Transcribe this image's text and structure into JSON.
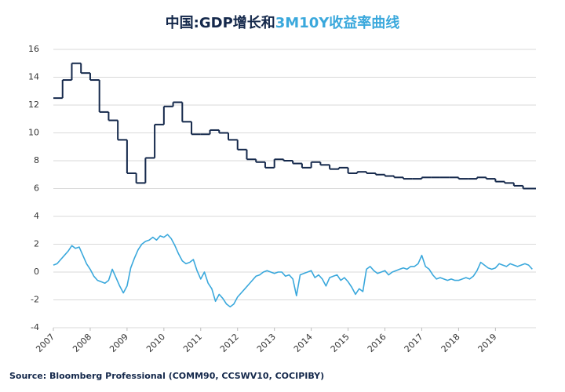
{
  "chart_data": {
    "type": "line",
    "title": [
      "中国:GDP增长和",
      "3M10Y收益率曲线"
    ],
    "title_colors": [
      "#14284b",
      "#3aa8dc"
    ],
    "source": "Source: Bloomberg Professional  (COMM90, CCSWV10, COCIPIBY)",
    "xlim": [
      2007,
      2020.1
    ],
    "xticks": [
      2007,
      2008,
      2009,
      2010,
      2011,
      2012,
      2013,
      2014,
      2015,
      2016,
      2017,
      2018,
      2019
    ],
    "ylim": [
      -4,
      16
    ],
    "yticks": [
      -4,
      -2,
      0,
      2,
      4,
      6,
      8,
      10,
      12,
      14,
      16
    ],
    "grid": true,
    "series": [
      {
        "color": "#14284b",
        "step": true,
        "x": [
          2007,
          2007.25,
          2007.5,
          2007.75,
          2008,
          2008.25,
          2008.5,
          2008.75,
          2009,
          2009.25,
          2009.5,
          2009.75,
          2010,
          2010.25,
          2010.5,
          2010.75,
          2011,
          2011.25,
          2011.5,
          2011.75,
          2012,
          2012.25,
          2012.5,
          2012.75,
          2013,
          2013.25,
          2013.5,
          2013.75,
          2014,
          2014.25,
          2014.5,
          2014.75,
          2015,
          2015.25,
          2015.5,
          2015.75,
          2016,
          2016.25,
          2016.5,
          2016.75,
          2017,
          2017.25,
          2017.5,
          2017.75,
          2018,
          2018.25,
          2018.5,
          2018.75,
          2019,
          2019.25,
          2019.5,
          2019.75
        ],
        "values": [
          12.5,
          13.8,
          15.0,
          14.3,
          13.8,
          11.5,
          10.9,
          9.5,
          7.1,
          6.4,
          8.2,
          10.6,
          11.9,
          12.2,
          10.8,
          9.9,
          9.9,
          10.2,
          10.0,
          9.5,
          8.8,
          8.1,
          7.9,
          7.5,
          8.1,
          8.0,
          7.8,
          7.5,
          7.9,
          7.7,
          7.4,
          7.5,
          7.1,
          7.2,
          7.1,
          7.0,
          6.9,
          6.8,
          6.7,
          6.7,
          6.8,
          6.8,
          6.8,
          6.8,
          6.7,
          6.7,
          6.8,
          6.7,
          6.5,
          6.4,
          6.2,
          6.0
        ]
      },
      {
        "color": "#3aa8dc",
        "step": false,
        "x": [
          2007,
          2007.1,
          2007.2,
          2007.3,
          2007.4,
          2007.5,
          2007.6,
          2007.7,
          2007.8,
          2007.9,
          2008,
          2008.1,
          2008.2,
          2008.3,
          2008.4,
          2008.5,
          2008.6,
          2008.7,
          2008.8,
          2008.9,
          2009,
          2009.1,
          2009.2,
          2009.3,
          2009.4,
          2009.5,
          2009.6,
          2009.7,
          2009.8,
          2009.9,
          2010,
          2010.1,
          2010.2,
          2010.3,
          2010.4,
          2010.5,
          2010.6,
          2010.7,
          2010.8,
          2010.9,
          2011,
          2011.1,
          2011.2,
          2011.3,
          2011.4,
          2011.5,
          2011.6,
          2011.7,
          2011.8,
          2011.9,
          2012,
          2012.1,
          2012.2,
          2012.3,
          2012.4,
          2012.5,
          2012.6,
          2012.7,
          2012.8,
          2012.9,
          2013,
          2013.1,
          2013.2,
          2013.3,
          2013.4,
          2013.5,
          2013.6,
          2013.7,
          2013.8,
          2013.9,
          2014,
          2014.1,
          2014.2,
          2014.3,
          2014.4,
          2014.5,
          2014.6,
          2014.7,
          2014.8,
          2014.9,
          2015,
          2015.1,
          2015.2,
          2015.3,
          2015.4,
          2015.5,
          2015.6,
          2015.7,
          2015.8,
          2015.9,
          2016,
          2016.1,
          2016.2,
          2016.3,
          2016.4,
          2016.5,
          2016.6,
          2016.7,
          2016.8,
          2016.9,
          2017,
          2017.1,
          2017.2,
          2017.3,
          2017.4,
          2017.5,
          2017.6,
          2017.7,
          2017.8,
          2017.9,
          2018,
          2018.1,
          2018.2,
          2018.3,
          2018.4,
          2018.5,
          2018.6,
          2018.7,
          2018.8,
          2018.9,
          2019,
          2019.1,
          2019.2,
          2019.3,
          2019.4,
          2019.5,
          2019.6,
          2019.7,
          2019.8,
          2019.9,
          2020
        ],
        "values": [
          0.5,
          0.6,
          0.9,
          1.2,
          1.5,
          1.9,
          1.7,
          1.8,
          1.2,
          0.6,
          0.2,
          -0.3,
          -0.6,
          -0.7,
          -0.8,
          -0.6,
          0.2,
          -0.4,
          -1.0,
          -1.5,
          -1.0,
          0.3,
          1.0,
          1.6,
          2.0,
          2.2,
          2.3,
          2.5,
          2.3,
          2.6,
          2.5,
          2.7,
          2.4,
          1.9,
          1.3,
          0.8,
          0.6,
          0.7,
          0.9,
          0.1,
          -0.5,
          0.0,
          -0.8,
          -1.2,
          -2.1,
          -1.6,
          -1.9,
          -2.3,
          -2.5,
          -2.3,
          -1.8,
          -1.5,
          -1.2,
          -0.9,
          -0.6,
          -0.3,
          -0.2,
          0.0,
          0.1,
          0.0,
          -0.1,
          0.0,
          0.0,
          -0.3,
          -0.2,
          -0.5,
          -1.7,
          -0.2,
          -0.1,
          0.0,
          0.1,
          -0.4,
          -0.2,
          -0.5,
          -1.0,
          -0.4,
          -0.3,
          -0.2,
          -0.6,
          -0.4,
          -0.7,
          -1.1,
          -1.6,
          -1.2,
          -1.4,
          0.2,
          0.4,
          0.1,
          -0.1,
          0.0,
          0.1,
          -0.2,
          0.0,
          0.1,
          0.2,
          0.3,
          0.2,
          0.4,
          0.4,
          0.6,
          1.2,
          0.4,
          0.2,
          -0.2,
          -0.5,
          -0.4,
          -0.5,
          -0.6,
          -0.5,
          -0.6,
          -0.6,
          -0.5,
          -0.4,
          -0.5,
          -0.3,
          0.1,
          0.7,
          0.5,
          0.3,
          0.2,
          0.3,
          0.6,
          0.5,
          0.4,
          0.6,
          0.5,
          0.4,
          0.5,
          0.6,
          0.5,
          0.2
        ]
      }
    ]
  }
}
